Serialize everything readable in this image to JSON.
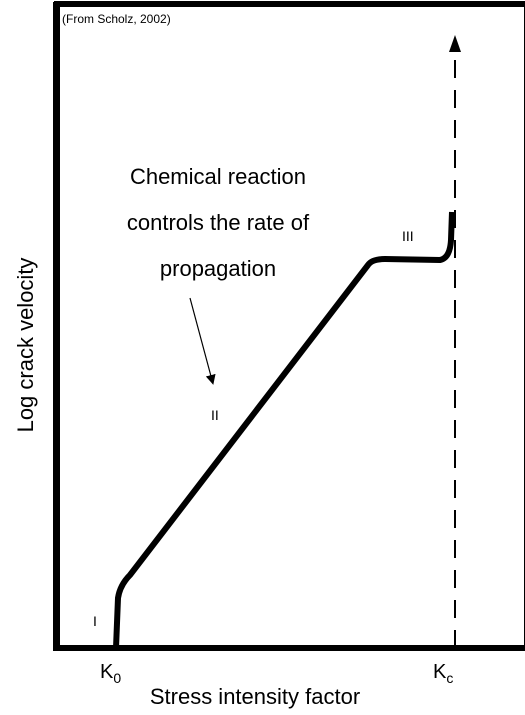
{
  "source": "(From Scholz, 2002)",
  "annotation": {
    "lines": [
      "Chemical reaction",
      "controls the rate of",
      "propagation"
    ]
  },
  "regions": [
    "I",
    "II",
    "III"
  ],
  "x_markers": [
    {
      "main": "K",
      "sub": "0"
    },
    {
      "main": "K",
      "sub": "c"
    }
  ],
  "x_label": "Stress intensity factor",
  "y_label": "Log crack velocity"
}
